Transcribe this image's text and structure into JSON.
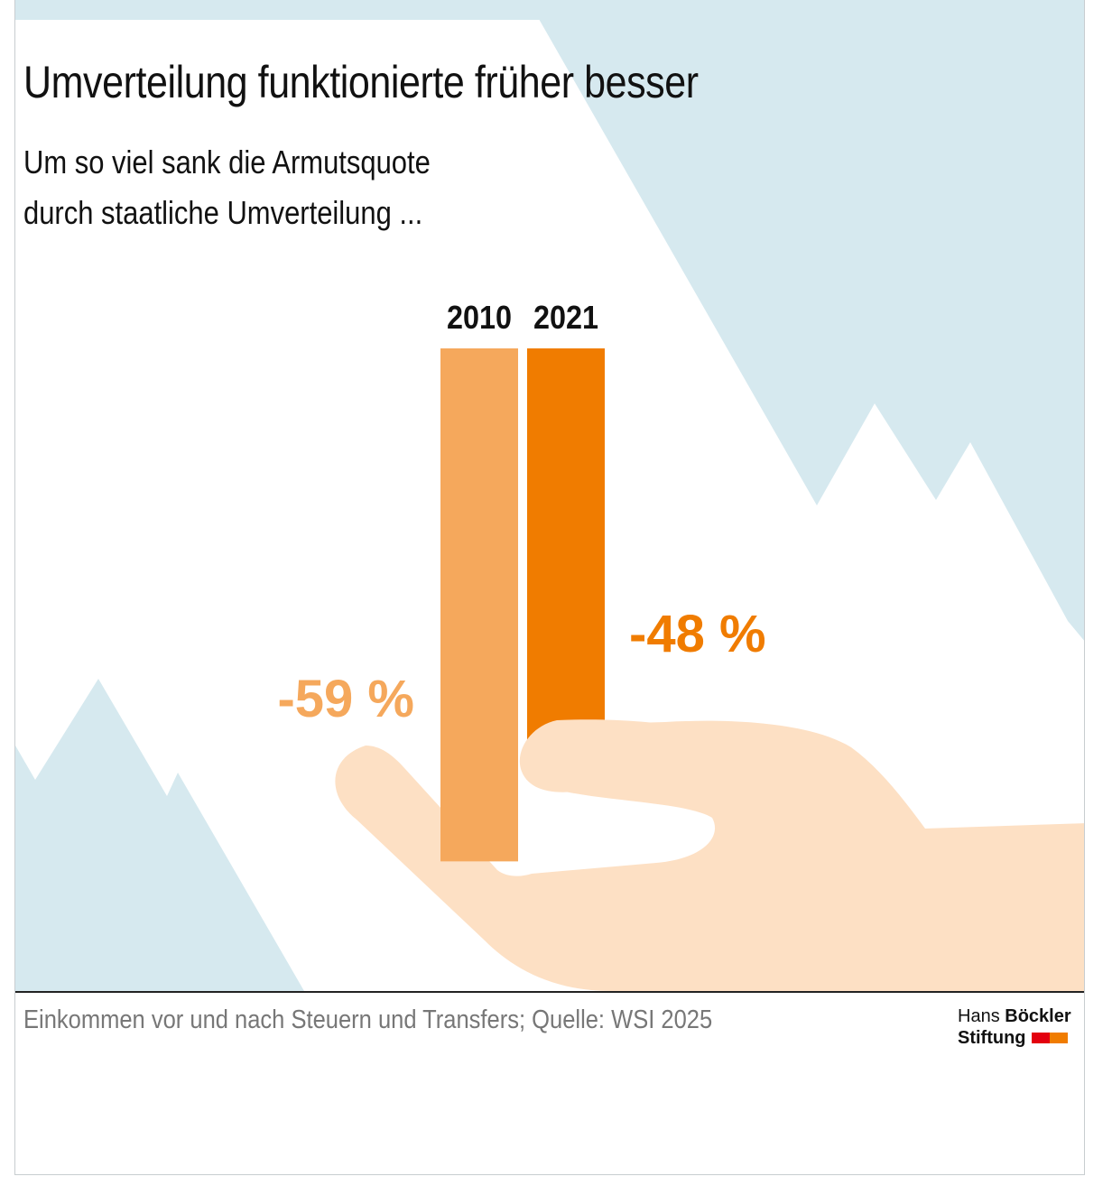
{
  "title": "Umverteilung funktionierte früher besser",
  "subtitle_line1": "Um so viel sank die Armutsquote",
  "subtitle_line2": "durch staatliche Umverteilung ...",
  "footer": "Einkommen vor und nach Steuern und Transfers; Quelle: WSI 2025",
  "logo": {
    "word1": "Hans",
    "word2": "Böckler",
    "word3": "Stiftung"
  },
  "colors": {
    "bar_2010": "#f5a85c",
    "bar_2021": "#f07c00",
    "mountains": "#d6e9ef",
    "hand": "#fde0c4",
    "logo_red": "#e3000f",
    "logo_orange": "#f07c00"
  },
  "chart_data": {
    "type": "bar",
    "categories": [
      "2010",
      "2021"
    ],
    "values": [
      -59,
      -48
    ],
    "value_labels": [
      "-59 %",
      "-48 %"
    ],
    "unit": "%",
    "title": "Umverteilung funktionierte früher besser",
    "xlabel": "",
    "ylabel": "",
    "ylim": [
      -60,
      0
    ]
  }
}
